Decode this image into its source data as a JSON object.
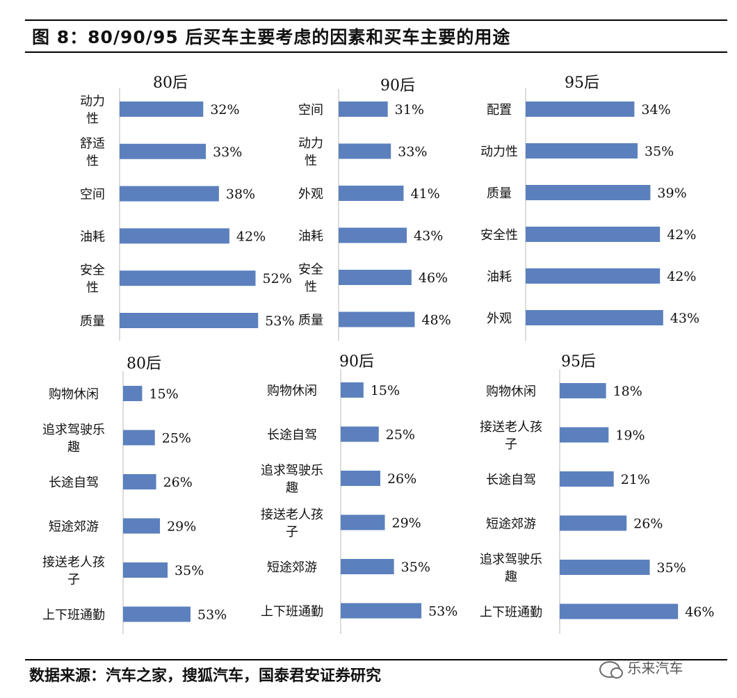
{
  "figure": {
    "title": "图 8：80/90/95 后买车主要考虑的因素和买车主要的用途",
    "source": "数据来源：汽车之家，搜狐汽车，国泰君安证券研究",
    "watermark": "乐来汽车"
  },
  "style": {
    "bar_color": "#5b80bd",
    "axis_color": "#d0d0d0",
    "text_color": "#111111"
  },
  "chart_data": [
    {
      "type": "bar",
      "orientation": "horizontal",
      "title": "80后",
      "categories": [
        "动力性",
        "舒适性",
        "空间",
        "油耗",
        "安全性",
        "质量"
      ],
      "values": [
        32,
        33,
        38,
        42,
        52,
        53
      ],
      "value_labels": [
        "32%",
        "33%",
        "38%",
        "42%",
        "52%",
        "53%"
      ]
    },
    {
      "type": "bar",
      "orientation": "horizontal",
      "title": "90后",
      "categories": [
        "空间",
        "动力性",
        "外观",
        "油耗",
        "安全性",
        "质量"
      ],
      "values": [
        31,
        33,
        41,
        43,
        46,
        48
      ],
      "value_labels": [
        "31%",
        "33%",
        "41%",
        "43%",
        "46%",
        "48%"
      ]
    },
    {
      "type": "bar",
      "orientation": "horizontal",
      "title": "95后",
      "categories": [
        "配置",
        "动力性",
        "质量",
        "安全性",
        "油耗",
        "外观"
      ],
      "values": [
        34,
        35,
        39,
        42,
        42,
        43
      ],
      "value_labels": [
        "34%",
        "35%",
        "39%",
        "42%",
        "42%",
        "43%"
      ]
    },
    {
      "type": "bar",
      "orientation": "horizontal",
      "title": "80后",
      "categories": [
        "购物休闲",
        "追求驾驶乐趣",
        "长途自驾",
        "短途郊游",
        "接送老人孩子",
        "上下班通勤"
      ],
      "values": [
        15,
        25,
        26,
        29,
        35,
        53
      ],
      "value_labels": [
        "15%",
        "25%",
        "26%",
        "29%",
        "35%",
        "53%"
      ]
    },
    {
      "type": "bar",
      "orientation": "horizontal",
      "title": "90后",
      "categories": [
        "购物休闲",
        "长途自驾",
        "追求驾驶乐趣",
        "接送老人孩子",
        "短途郊游",
        "上下班通勤"
      ],
      "values": [
        15,
        25,
        26,
        29,
        35,
        53
      ],
      "value_labels": [
        "15%",
        "25%",
        "26%",
        "29%",
        "35%",
        "53%"
      ]
    },
    {
      "type": "bar",
      "orientation": "horizontal",
      "title": "95后",
      "categories": [
        "购物休闲",
        "接送老人孩子",
        "长途自驾",
        "短途郊游",
        "追求驾驶乐趣",
        "上下班通勤"
      ],
      "values": [
        18,
        19,
        21,
        26,
        35,
        46
      ],
      "value_labels": [
        "18%",
        "19%",
        "21%",
        "26%",
        "35%",
        "46%"
      ]
    }
  ]
}
